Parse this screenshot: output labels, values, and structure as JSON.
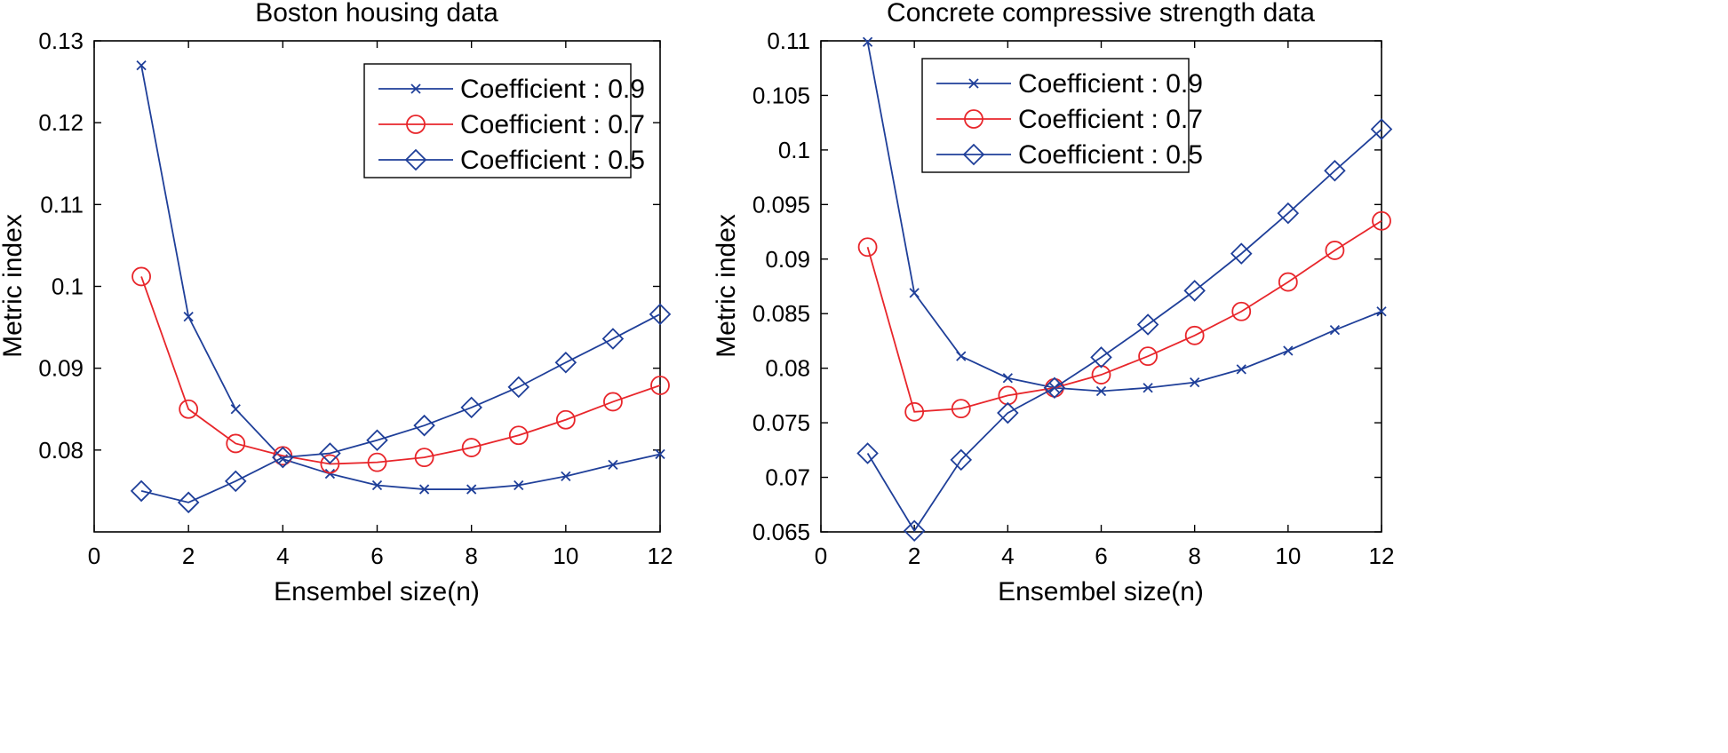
{
  "chart_data": [
    {
      "type": "line",
      "title": "Boston housing data",
      "xlabel": "Ensembel size(n)",
      "ylabel": "Metric index",
      "xlim": [
        0,
        12
      ],
      "ylim": [
        0.07,
        0.13
      ],
      "xticks": [
        0,
        2,
        4,
        6,
        8,
        10,
        12
      ],
      "yticks": [
        0.08,
        0.09,
        0.1,
        0.11,
        0.12,
        0.13
      ],
      "ytick_labels": [
        "0.08",
        "0.09",
        "0.1",
        "0.11",
        "0.12",
        "0.13"
      ],
      "legend_position": "top-right",
      "x": [
        1,
        2,
        3,
        4,
        5,
        6,
        7,
        8,
        9,
        10,
        11,
        12
      ],
      "series": [
        {
          "name": "Coefficient : 0.9",
          "marker": "x",
          "color": "#1f3f99",
          "values": [
            0.127,
            0.0963,
            0.085,
            0.0789,
            0.0771,
            0.0757,
            0.0752,
            0.0752,
            0.0757,
            0.0768,
            0.0782,
            0.0795
          ]
        },
        {
          "name": "Coefficient : 0.7",
          "marker": "circle",
          "color": "#e8262b",
          "values": [
            0.1012,
            0.085,
            0.0808,
            0.0793,
            0.0783,
            0.0785,
            0.0791,
            0.0803,
            0.0818,
            0.0837,
            0.0859,
            0.0879
          ]
        },
        {
          "name": "Coefficient : 0.5",
          "marker": "diamond",
          "color": "#1f3f99",
          "values": [
            0.075,
            0.0736,
            0.0762,
            0.0791,
            0.0796,
            0.0812,
            0.083,
            0.0852,
            0.0877,
            0.0907,
            0.0936,
            0.0966
          ]
        }
      ]
    },
    {
      "type": "line",
      "title": "Concrete compressive strength data",
      "xlabel": "Ensembel size(n)",
      "ylabel": "Metric index",
      "xlim": [
        0,
        12
      ],
      "ylim": [
        0.065,
        0.11
      ],
      "xticks": [
        0,
        2,
        4,
        6,
        8,
        10,
        12
      ],
      "yticks": [
        0.065,
        0.07,
        0.075,
        0.08,
        0.085,
        0.09,
        0.095,
        0.1,
        0.105,
        0.11
      ],
      "ytick_labels": [
        "0.065",
        "0.07",
        "0.075",
        "0.08",
        "0.085",
        "0.09",
        "0.095",
        "0.1",
        "0.105",
        "0.11"
      ],
      "legend_position": "top-left",
      "x": [
        1,
        2,
        3,
        4,
        5,
        6,
        7,
        8,
        9,
        10,
        11,
        12
      ],
      "series": [
        {
          "name": "Coefficient : 0.9",
          "marker": "x",
          "color": "#1f3f99",
          "values": [
            0.1099,
            0.0869,
            0.0811,
            0.0791,
            0.0782,
            0.0779,
            0.0782,
            0.0787,
            0.0799,
            0.0816,
            0.0835,
            0.0852
          ]
        },
        {
          "name": "Coefficient : 0.7",
          "marker": "circle",
          "color": "#e8262b",
          "values": [
            0.0911,
            0.076,
            0.0763,
            0.0775,
            0.0782,
            0.0794,
            0.0811,
            0.083,
            0.0852,
            0.0879,
            0.0908,
            0.0935
          ]
        },
        {
          "name": "Coefficient : 0.5",
          "marker": "diamond",
          "color": "#1f3f99",
          "values": [
            0.0722,
            0.0651,
            0.0716,
            0.0759,
            0.0782,
            0.081,
            0.084,
            0.0871,
            0.0905,
            0.0942,
            0.0981,
            0.1019
          ]
        }
      ]
    }
  ]
}
